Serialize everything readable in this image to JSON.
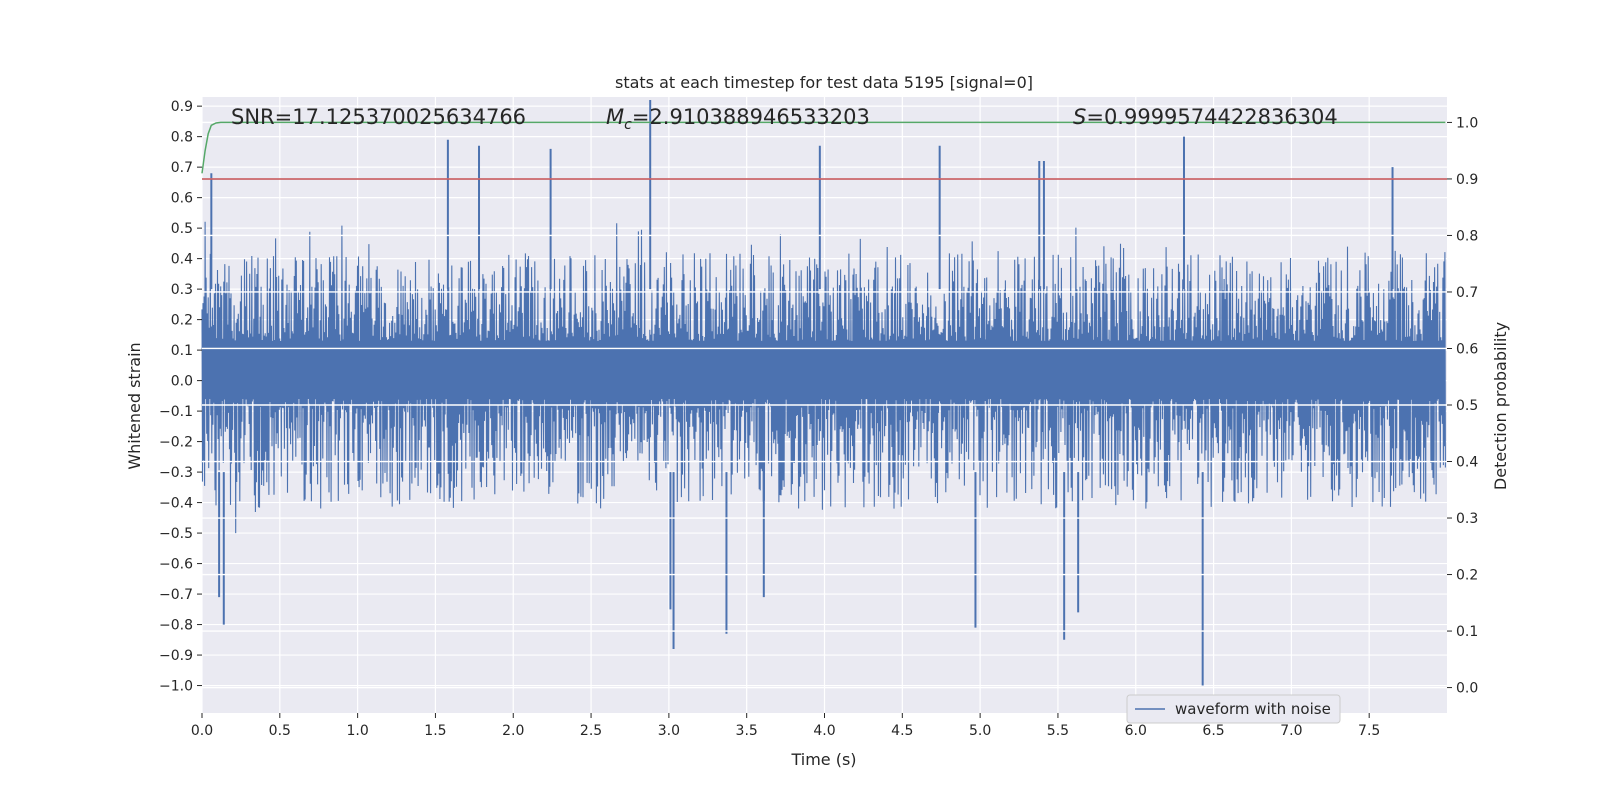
{
  "chart_data": {
    "type": "line",
    "title": "stats at each timestep for test data 5195 [signal=0]",
    "xlabel": "Time (s)",
    "ylabel": "Whitened strain",
    "y2label": "Detection probability",
    "xlim": [
      0.0,
      8.0
    ],
    "ylim": [
      -1.09,
      0.93
    ],
    "y2lim": [
      -0.045,
      1.045
    ],
    "x_ticks": [
      "0.0",
      "0.5",
      "1.0",
      "1.5",
      "2.0",
      "2.5",
      "3.0",
      "3.5",
      "4.0",
      "4.5",
      "5.0",
      "5.5",
      "6.0",
      "6.5",
      "7.0",
      "7.5"
    ],
    "y_ticks": [
      "0.9",
      "0.8",
      "0.7",
      "0.6",
      "0.5",
      "0.4",
      "0.3",
      "0.2",
      "0.1",
      "0.0",
      "−0.1",
      "−0.2",
      "−0.3",
      "−0.4",
      "−0.5",
      "−0.6",
      "−0.7",
      "−0.8",
      "−0.9",
      "−1.0"
    ],
    "y2_ticks": [
      "1.0",
      "0.9",
      "0.8",
      "0.7",
      "0.6",
      "0.5",
      "0.4",
      "0.3",
      "0.2",
      "0.1",
      "0.0"
    ],
    "grid": true,
    "legend_position": "lower-right",
    "annotations": {
      "snr": "SNR=17.125370025634766",
      "mc_symbol": "M",
      "mc_sub": "c",
      "mc_value": "=2.910388946533203",
      "s_symbol": "S",
      "s_value": "=0.9999574422836304"
    },
    "series": [
      {
        "name": "waveform with noise",
        "axis": "left",
        "kind": "noise-band",
        "color": "#4c72b0",
        "x_range": [
          0.0,
          7.99
        ],
        "dense_band": [
          -0.06,
          0.13
        ],
        "typical_envelope": [
          -0.42,
          0.42
        ],
        "notable_peaks": [
          {
            "x": 0.06,
            "y": 0.68
          },
          {
            "x": 1.58,
            "y": 0.79
          },
          {
            "x": 1.78,
            "y": 0.77
          },
          {
            "x": 2.24,
            "y": 0.76
          },
          {
            "x": 2.88,
            "y": 0.92
          },
          {
            "x": 3.97,
            "y": 0.77
          },
          {
            "x": 4.74,
            "y": 0.77
          },
          {
            "x": 5.38,
            "y": 0.72
          },
          {
            "x": 5.41,
            "y": 0.72
          },
          {
            "x": 6.31,
            "y": 0.8
          },
          {
            "x": 7.65,
            "y": 0.7
          }
        ],
        "notable_troughs": [
          {
            "x": 0.14,
            "y": -0.8
          },
          {
            "x": 0.11,
            "y": -0.71
          },
          {
            "x": 3.03,
            "y": -0.88
          },
          {
            "x": 3.01,
            "y": -0.75
          },
          {
            "x": 3.37,
            "y": -0.83
          },
          {
            "x": 3.61,
            "y": -0.71
          },
          {
            "x": 4.97,
            "y": -0.81
          },
          {
            "x": 5.54,
            "y": -0.85
          },
          {
            "x": 5.63,
            "y": -0.76
          },
          {
            "x": 6.43,
            "y": -1.0
          }
        ]
      },
      {
        "name": "",
        "axis": "right",
        "kind": "line",
        "color": "#55a868",
        "x": [
          0.0,
          0.02,
          0.04,
          0.06,
          0.09,
          0.12,
          0.2,
          0.5,
          1.0,
          2.0,
          3.0,
          4.0,
          5.0,
          6.0,
          7.0,
          7.99
        ],
        "y": [
          0.91,
          0.95,
          0.98,
          0.995,
          0.999,
          1.0,
          1.0,
          1.0,
          1.0,
          1.0,
          1.0,
          1.0,
          1.0,
          1.0,
          1.0,
          1.0
        ]
      },
      {
        "name": "",
        "axis": "right",
        "kind": "hline",
        "color": "#c44e52",
        "y": 0.9
      }
    ]
  }
}
